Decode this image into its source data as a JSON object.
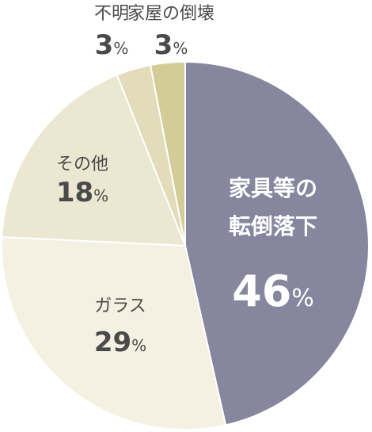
{
  "chart_data": {
    "type": "pie",
    "slices": [
      {
        "label": [
          "家具等の",
          "転倒落下"
        ],
        "value": 46,
        "value_text": "46",
        "unit": "%",
        "color": "#86869f",
        "label_color": "#ffffff"
      },
      {
        "label": [
          "ガラス"
        ],
        "value": 29,
        "value_text": "29",
        "unit": "%",
        "color": "#f4f1e2",
        "label_color": "#4a4a4a"
      },
      {
        "label": [
          "その他"
        ],
        "value": 18,
        "value_text": "18",
        "unit": "%",
        "color": "#ebe7d1",
        "label_color": "#4a4a4a"
      },
      {
        "label": [
          "不明"
        ],
        "value": 3,
        "value_text": "3",
        "unit": "%",
        "color": "#e2dcba",
        "label_color": "#4a4a4a"
      },
      {
        "label": [
          "家屋の倒壊"
        ],
        "value": 3,
        "value_text": "3",
        "unit": "%",
        "color": "#d3cc96",
        "label_color": "#4a4a4a"
      }
    ],
    "start_angle_deg": 0,
    "direction": "clockwise",
    "legend": "none",
    "title": ""
  }
}
